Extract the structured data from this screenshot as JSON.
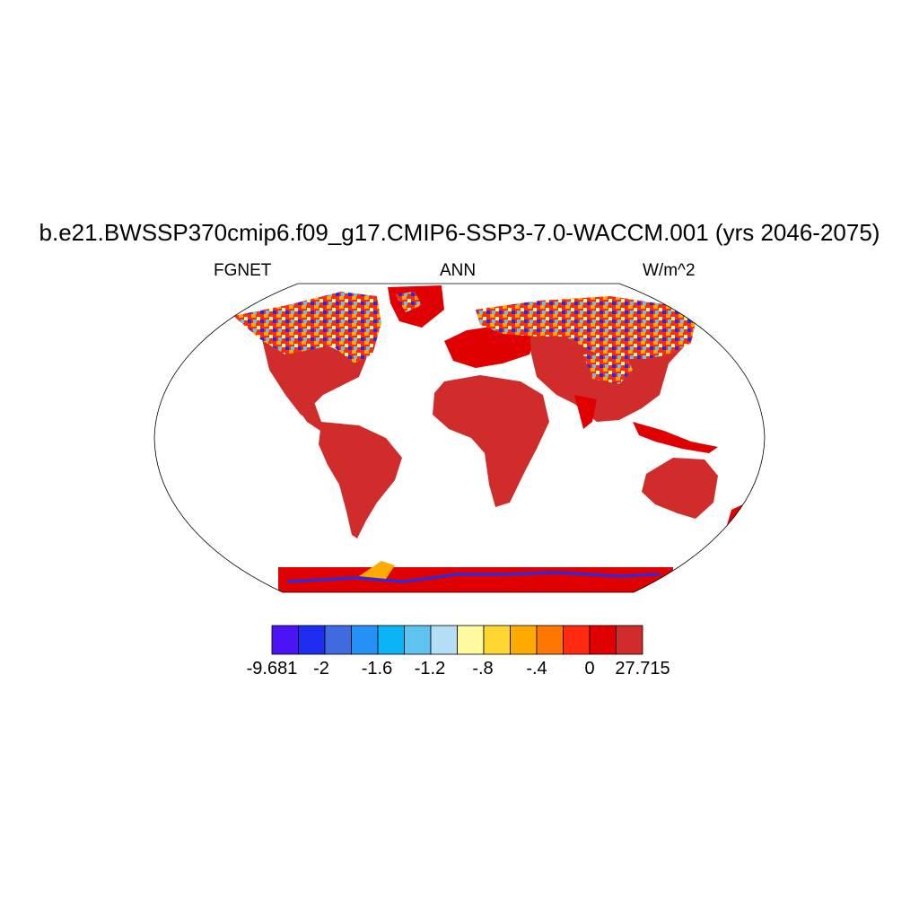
{
  "figure": {
    "title": "b.e21.BWSSP370cmip6.f09_g17.CMIP6-SSP3-7.0-WACCM.001 (yrs 2046-2075)",
    "left_label": "FGNET",
    "center_label": "ANN",
    "right_label": "W/m^2"
  },
  "colorbar": {
    "colors": [
      "#4a14f5",
      "#1e2ef0",
      "#3f6ae0",
      "#2590f5",
      "#0cb4f5",
      "#5fc3ef",
      "#b3def5",
      "#fff9a0",
      "#ffd632",
      "#ffaa00",
      "#ff7700",
      "#ff2a10",
      "#e00000",
      "#d12c2c"
    ],
    "labels": [
      "-9.681",
      "-2",
      "-1.6",
      "-1.2",
      "-.8",
      "-.4",
      "0",
      "27.715"
    ]
  },
  "map": {
    "projection": "Robinson",
    "land_fill_dominant": "#d12c2c",
    "high_latitude_colors": [
      "#4a14f5",
      "#2590f5",
      "#b3def5",
      "#fff9a0",
      "#ffaa00"
    ]
  }
}
